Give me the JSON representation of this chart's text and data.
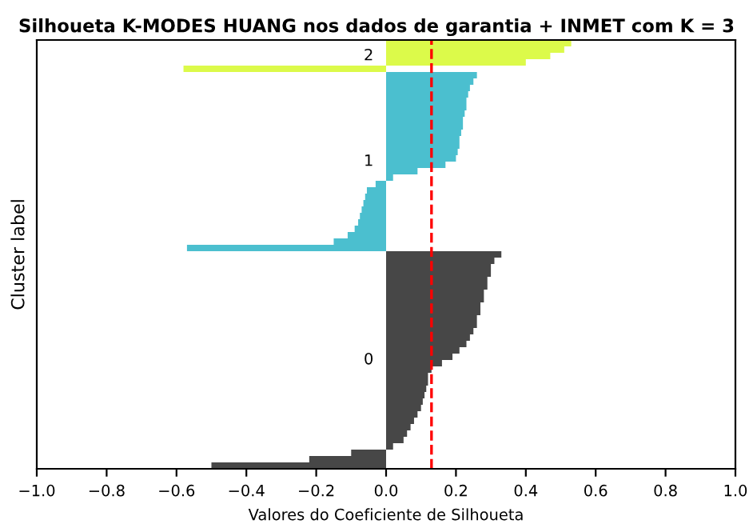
{
  "chart_data": {
    "type": "bar",
    "orientation": "horizontal",
    "title": "Silhoueta K-MODES HUANG nos dados de garantia + INMET com K = 3",
    "xlabel": "Valores do Coeficiente de Silhoueta",
    "ylabel": "Cluster label",
    "categories": [
      null,
      null,
      null,
      null,
      null,
      null,
      null,
      null,
      null,
      null,
      null,
      null,
      null,
      null,
      null,
      null,
      null,
      null,
      null,
      null,
      null,
      null,
      null,
      null,
      null,
      null,
      null,
      null,
      null,
      null,
      null,
      null,
      null,
      null,
      null,
      null,
      null,
      null,
      null,
      null,
      null,
      null,
      null,
      null,
      null,
      null,
      null,
      null,
      null,
      null,
      null,
      null,
      null,
      null,
      null,
      null,
      null,
      null,
      null,
      null,
      null,
      null,
      null,
      null,
      null,
      null,
      null
    ],
    "series": [
      {
        "color": "#474747",
        "values": [
          null,
          null,
          null,
          null,
          null,
          null,
          null,
          null,
          null,
          null,
          null,
          null,
          null,
          null,
          null,
          null,
          null,
          null,
          null,
          null,
          null,
          null,
          null,
          null,
          null,
          null,
          null,
          null,
          null,
          null,
          null,
          null,
          null,
          0.33,
          0.31,
          0.3,
          0.3,
          0.29,
          0.29,
          0.28,
          0.28,
          0.27,
          0.27,
          0.26,
          0.26,
          0.25,
          0.24,
          0.23,
          0.21,
          0.19,
          0.16,
          0.13,
          0.12,
          0.12,
          0.115,
          0.11,
          0.105,
          0.1,
          0.09,
          0.08,
          0.07,
          0.06,
          0.05,
          0.02,
          -0.1,
          -0.22,
          -0.5
        ]
      },
      {
        "color": "#4bbfcf",
        "values": [
          null,
          null,
          null,
          null,
          null,
          0.26,
          0.25,
          0.24,
          0.235,
          0.23,
          0.23,
          0.225,
          0.22,
          0.22,
          0.215,
          0.21,
          0.21,
          0.205,
          0.2,
          0.17,
          0.09,
          0.02,
          -0.03,
          -0.055,
          -0.06,
          -0.065,
          -0.07,
          -0.075,
          -0.08,
          -0.09,
          -0.11,
          -0.15,
          -0.57,
          null,
          null,
          null,
          null,
          null,
          null,
          null,
          null,
          null,
          null,
          null,
          null,
          null,
          null,
          null,
          null,
          null,
          null,
          null,
          null,
          null,
          null,
          null,
          null,
          null,
          null,
          null,
          null,
          null,
          null,
          null,
          null,
          null,
          null
        ]
      },
      {
        "color": "#dcfa4a",
        "values": [
          0.53,
          0.51,
          0.47,
          0.4,
          -0.58,
          null,
          null,
          null,
          null,
          null,
          null,
          null,
          null,
          null,
          null,
          null,
          null,
          null,
          null,
          null,
          null,
          null,
          null,
          null,
          null,
          null,
          null,
          null,
          null,
          null,
          null,
          null,
          null,
          null,
          null,
          null,
          null,
          null,
          null,
          null,
          null,
          null,
          null,
          null,
          null,
          null,
          null,
          null,
          null,
          null,
          null,
          null,
          null,
          null,
          null,
          null,
          null,
          null,
          null,
          null,
          null,
          null,
          null,
          null,
          null,
          null,
          null
        ]
      }
    ],
    "annotations": [
      "0",
      "1",
      "2"
    ],
    "ref_lines": [
      {
        "axis": "x",
        "value": 0.13,
        "color": "#ff0000",
        "line_style": "dashed"
      }
    ],
    "xlim": [
      -1.0,
      1.0
    ],
    "xticks": [
      {
        "value": -1.0,
        "label": "−1.0"
      },
      {
        "value": -0.8,
        "label": "−0.8"
      },
      {
        "value": -0.6,
        "label": "−0.6"
      },
      {
        "value": -0.4,
        "label": "−0.4"
      },
      {
        "value": -0.2,
        "label": "−0.2"
      },
      {
        "value": 0.0,
        "label": "0.0"
      },
      {
        "value": 0.2,
        "label": "0.2"
      },
      {
        "value": 0.4,
        "label": "0.4"
      },
      {
        "value": 0.6,
        "label": "0.6"
      },
      {
        "value": 0.8,
        "label": "0.8"
      },
      {
        "value": 1.0,
        "label": "1.0"
      }
    ],
    "tick_labels": "x",
    "grid": false
  }
}
